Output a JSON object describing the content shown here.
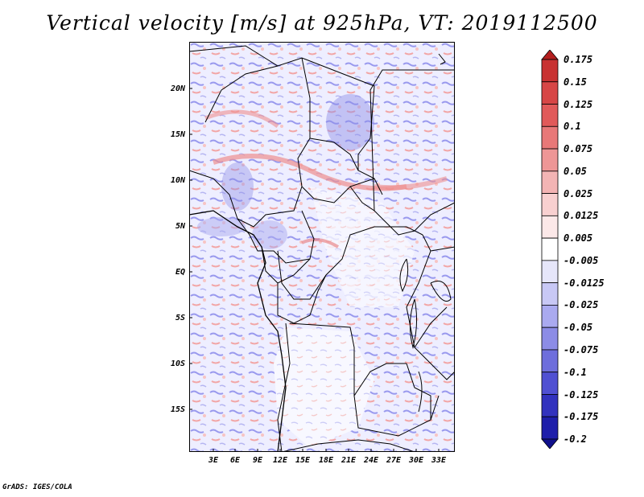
{
  "title": "Vertical velocity [m/s] at 925hPa, VT: 2019112500",
  "footer": "GrADS: IGES/COLA",
  "map": {
    "lat_labels": [
      "20N",
      "15N",
      "10N",
      "5N",
      "EQ",
      "5S",
      "10S",
      "15S"
    ],
    "lon_labels": [
      "3E",
      "6E",
      "9E",
      "12E",
      "15E",
      "18E",
      "21E",
      "24E",
      "27E",
      "30E",
      "33E"
    ]
  },
  "colorbar": {
    "labels": [
      "0.175",
      "0.15",
      "0.125",
      "0.1",
      "0.075",
      "0.05",
      "0.025",
      "0.0125",
      "0.005",
      "-0.005",
      "-0.0125",
      "-0.025",
      "-0.05",
      "-0.075",
      "-0.1",
      "-0.125",
      "-0.175",
      "-0.2"
    ],
    "colors": [
      "#b41f1f",
      "#c83232",
      "#d74646",
      "#e15a5a",
      "#e87878",
      "#ee9696",
      "#f3b4b4",
      "#f8d0d0",
      "#fce8e8",
      "#ffffff",
      "#e6e6fa",
      "#c8c8f5",
      "#aaaaf0",
      "#8c8ce6",
      "#6e6edc",
      "#5050d2",
      "#3232be",
      "#1e1eaa",
      "#10108c"
    ]
  }
}
